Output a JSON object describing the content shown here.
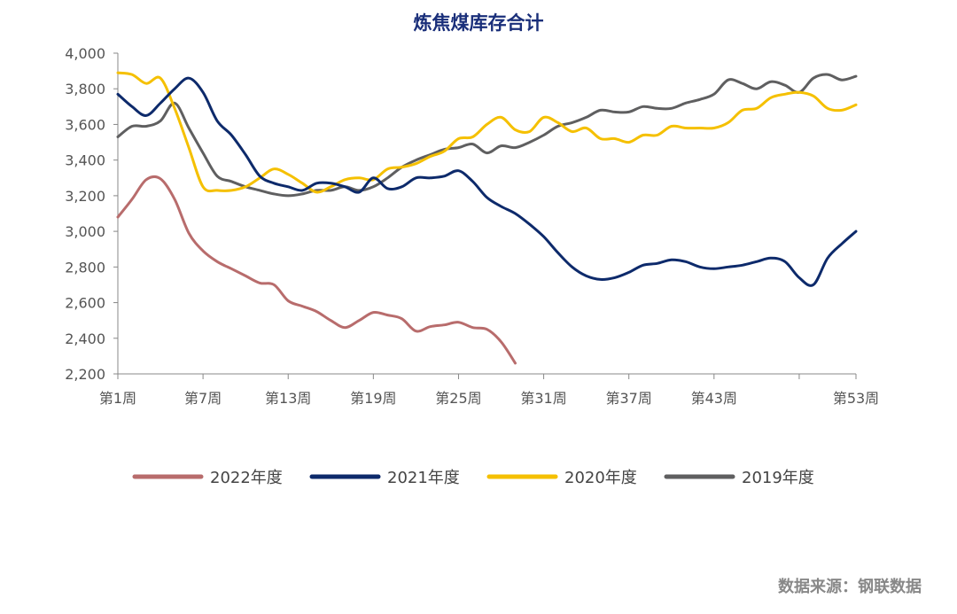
{
  "chart_data": {
    "type": "line",
    "title": "炼焦煤库存合计",
    "source": "数据来源：钢联数据",
    "y_ticks": [
      "4,000",
      "3,800",
      "3,600",
      "3,400",
      "3,200",
      "3,000",
      "2,800",
      "2,600",
      "2,400",
      "2,200"
    ],
    "ylim": [
      2200,
      4000
    ],
    "x_ticks": [
      {
        "week": 1,
        "label": "第1周"
      },
      {
        "week": 7,
        "label": "第7周"
      },
      {
        "week": 13,
        "label": "第13周"
      },
      {
        "week": 19,
        "label": "第19周"
      },
      {
        "week": 25,
        "label": "第25周"
      },
      {
        "week": 31,
        "label": "第31周"
      },
      {
        "week": 37,
        "label": "第37周"
      },
      {
        "week": 43,
        "label": "第43周"
      },
      {
        "week": 49,
        "label": ""
      },
      {
        "week": 53,
        "label": "第53周"
      }
    ],
    "xlim": [
      1,
      53
    ],
    "series": [
      {
        "name": "2022年度",
        "color": "#b86c6c",
        "x": [
          1,
          2,
          3,
          4,
          5,
          6,
          7,
          8,
          9,
          10,
          11,
          12,
          13,
          14,
          15,
          16,
          17,
          18,
          19,
          20,
          21,
          22,
          23,
          24,
          25,
          26,
          27,
          28,
          29
        ],
        "values": [
          3080,
          3180,
          3290,
          3295,
          3180,
          2990,
          2890,
          2830,
          2790,
          2750,
          2710,
          2700,
          2610,
          2580,
          2550,
          2500,
          2460,
          2500,
          2545,
          2530,
          2510,
          2440,
          2465,
          2475,
          2490,
          2460,
          2450,
          2380,
          2260
        ]
      },
      {
        "name": "2021年度",
        "color": "#0d2a6b",
        "x": [
          1,
          2,
          3,
          4,
          5,
          6,
          7,
          8,
          9,
          10,
          11,
          12,
          13,
          14,
          15,
          16,
          17,
          18,
          19,
          20,
          21,
          22,
          23,
          24,
          25,
          26,
          27,
          28,
          29,
          30,
          31,
          32,
          33,
          34,
          35,
          36,
          37,
          38,
          39,
          40,
          41,
          42,
          43,
          44,
          45,
          46,
          47,
          48,
          49,
          50,
          51,
          52,
          53
        ],
        "values": [
          3770,
          3700,
          3650,
          3720,
          3800,
          3860,
          3780,
          3620,
          3540,
          3430,
          3310,
          3270,
          3250,
          3230,
          3270,
          3270,
          3250,
          3220,
          3300,
          3240,
          3250,
          3300,
          3300,
          3310,
          3340,
          3280,
          3190,
          3140,
          3100,
          3040,
          2970,
          2880,
          2800,
          2750,
          2730,
          2740,
          2770,
          2810,
          2820,
          2840,
          2830,
          2800,
          2790,
          2800,
          2810,
          2830,
          2850,
          2830,
          2740,
          2700,
          2850,
          2930,
          3000
        ]
      },
      {
        "name": "2020年度",
        "color": "#f5c000",
        "x": [
          1,
          2,
          3,
          4,
          5,
          6,
          7,
          8,
          9,
          10,
          11,
          12,
          13,
          14,
          15,
          16,
          17,
          18,
          19,
          20,
          21,
          22,
          23,
          24,
          25,
          26,
          27,
          28,
          29,
          30,
          31,
          32,
          33,
          34,
          35,
          36,
          37,
          38,
          39,
          40,
          41,
          42,
          43,
          44,
          45,
          46,
          47,
          48,
          49,
          50,
          51,
          52,
          53
        ],
        "values": [
          3890,
          3880,
          3830,
          3860,
          3690,
          3470,
          3250,
          3230,
          3230,
          3250,
          3300,
          3350,
          3320,
          3270,
          3220,
          3250,
          3290,
          3300,
          3290,
          3350,
          3360,
          3380,
          3420,
          3450,
          3520,
          3530,
          3600,
          3640,
          3570,
          3560,
          3640,
          3610,
          3560,
          3580,
          3520,
          3520,
          3500,
          3540,
          3540,
          3590,
          3580,
          3580,
          3580,
          3610,
          3680,
          3690,
          3750,
          3770,
          3780,
          3760,
          3690,
          3680,
          3710
        ]
      },
      {
        "name": "2019年度",
        "color": "#5f5f60",
        "x": [
          1,
          2,
          3,
          4,
          5,
          6,
          7,
          8,
          9,
          10,
          11,
          12,
          13,
          14,
          15,
          16,
          17,
          18,
          19,
          20,
          21,
          22,
          23,
          24,
          25,
          26,
          27,
          28,
          29,
          30,
          31,
          32,
          33,
          34,
          35,
          36,
          37,
          38,
          39,
          40,
          41,
          42,
          43,
          44,
          45,
          46,
          47,
          48,
          49,
          50,
          51,
          52,
          53
        ],
        "values": [
          3530,
          3590,
          3590,
          3620,
          3720,
          3580,
          3440,
          3310,
          3280,
          3250,
          3230,
          3210,
          3200,
          3210,
          3230,
          3230,
          3250,
          3230,
          3250,
          3300,
          3360,
          3400,
          3430,
          3460,
          3470,
          3490,
          3440,
          3480,
          3470,
          3500,
          3540,
          3590,
          3610,
          3640,
          3680,
          3670,
          3670,
          3700,
          3690,
          3690,
          3720,
          3740,
          3770,
          3850,
          3830,
          3800,
          3840,
          3820,
          3780,
          3860,
          3880,
          3850,
          3870
        ]
      }
    ]
  }
}
